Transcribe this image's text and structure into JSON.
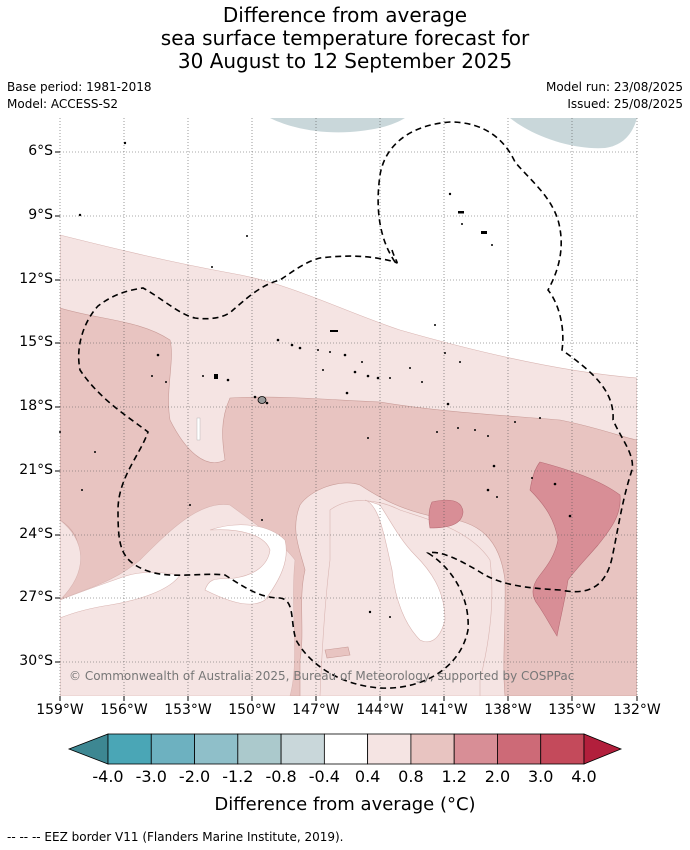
{
  "title_lines": [
    "Difference from average",
    "sea surface temperature forecast for",
    "30 August to 12 September 2025"
  ],
  "base_period": "Base period: 1981-2018",
  "model": "Model: ACCESS-S2",
  "model_run": "Model run: 23/08/2025",
  "issued": "Issued: 25/08/2025",
  "lat_labels": [
    "6°S",
    "9°S",
    "12°S",
    "15°S",
    "18°S",
    "21°S",
    "24°S",
    "27°S",
    "30°S"
  ],
  "lon_labels": [
    "159°W",
    "156°W",
    "153°W",
    "150°W",
    "147°W",
    "144°W",
    "141°W",
    "138°W",
    "135°W",
    "132°W"
  ],
  "copyright": "© Commonwealth of Australia 2025, Bureau of Meteorology, supported by COSPPac",
  "colorbar": {
    "labels": [
      "-4.0",
      "-3.0",
      "-2.0",
      "-1.2",
      "-0.8",
      "-0.4",
      "0.4",
      "0.8",
      "1.2",
      "2.0",
      "3.0",
      "4.0"
    ],
    "colors": [
      "#4aa6b6",
      "#6db1c0",
      "#8fbfc9",
      "#abc9cc",
      "#c9d7da",
      "#ffffff",
      "#f5e4e3",
      "#e8c4c1",
      "#d88e96",
      "#cd6a77",
      "#c44a5b"
    ],
    "under_color": "#3d8792",
    "over_color": "#b21f3c",
    "title": "Difference from average (°C)"
  },
  "legend_text": "-- -- -- EEZ border V11 (Flanders Marine Institute, 2019)."
}
